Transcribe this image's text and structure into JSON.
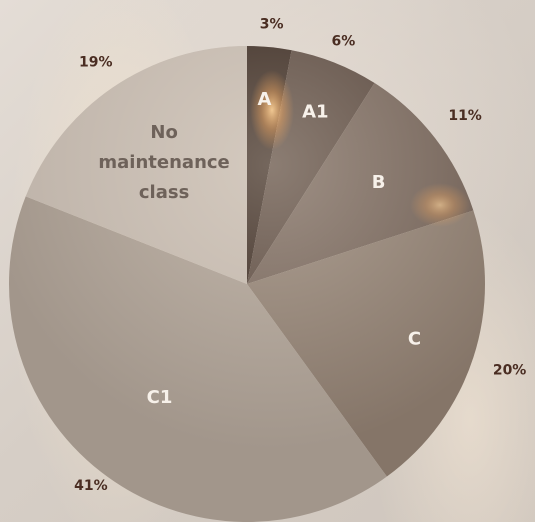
{
  "chart_data": {
    "type": "pie",
    "start": "12 o'clock",
    "direction": "clockwise",
    "slices": [
      {
        "label": "A",
        "value": 3,
        "percent_label": "3%",
        "color": "#2a1a12"
      },
      {
        "label": "A1",
        "value": 6,
        "percent_label": "6%",
        "color": "#4e3d34"
      },
      {
        "label": "B",
        "value": 11,
        "percent_label": "11%",
        "color": "#6b5a50"
      },
      {
        "label": "C",
        "value": 20,
        "percent_label": "20%",
        "color": "#857568"
      },
      {
        "label": "C1",
        "value": 41,
        "percent_label": "41%",
        "color": "#a2968b"
      },
      {
        "label": "No maintenance class",
        "label_lines": [
          "No",
          "maintenance",
          "class"
        ],
        "value": 19,
        "percent_label": "19%",
        "color": "#bdb2a8"
      }
    ]
  }
}
